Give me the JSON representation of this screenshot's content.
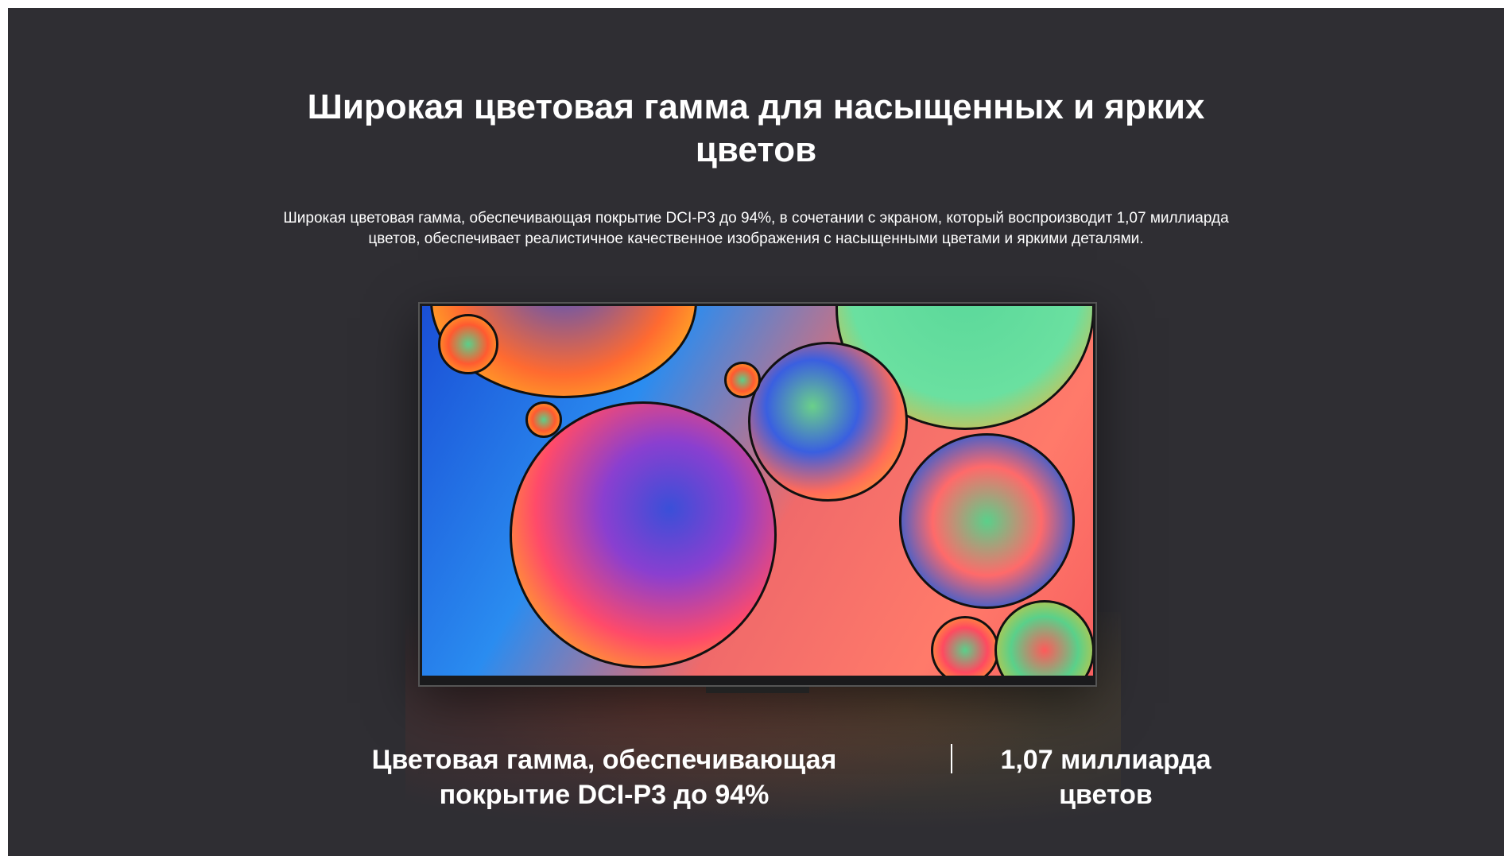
{
  "title_lines": [
    "Широкая цветовая гамма для насыщенных и ярких",
    "цветов"
  ],
  "description": "Широкая цветовая гамма, обеспечивающая покрытие DCI-P3 до 94%, в сочетании с экраном, который воспроизводит 1,07 миллиарда цветов, обеспечивает реалистичное качественное изображения с насыщенными цветами и яркими деталями.",
  "stats": [
    {
      "lines": [
        "Цветовая гамма, обеспечивающая",
        "покрытие DCI-P3 до 94%"
      ]
    },
    {
      "lines": [
        "1,07 миллиарда",
        "цветов"
      ]
    }
  ],
  "colors": {
    "background": "#2f2e33",
    "text": "#ffffff"
  }
}
